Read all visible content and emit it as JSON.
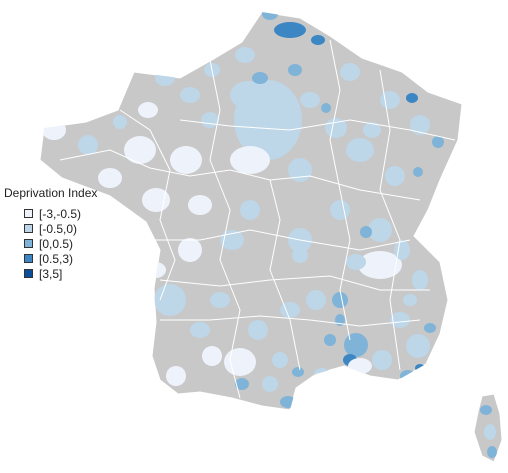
{
  "legend": {
    "title": "Deprivation Index",
    "items": [
      {
        "label": "[-3,-0.5)",
        "color": "#eef3fb"
      },
      {
        "label": "[-0.5,0)",
        "color": "#bdd6e8"
      },
      {
        "label": "[0,0.5)",
        "color": "#7fb3d8"
      },
      {
        "label": "[0.5,3)",
        "color": "#3d86c4"
      },
      {
        "label": "[3,5]",
        "color": "#0b4f9c"
      }
    ]
  },
  "colors": {
    "no_data": "#c8c8c8",
    "borders": "#ffffff"
  }
}
